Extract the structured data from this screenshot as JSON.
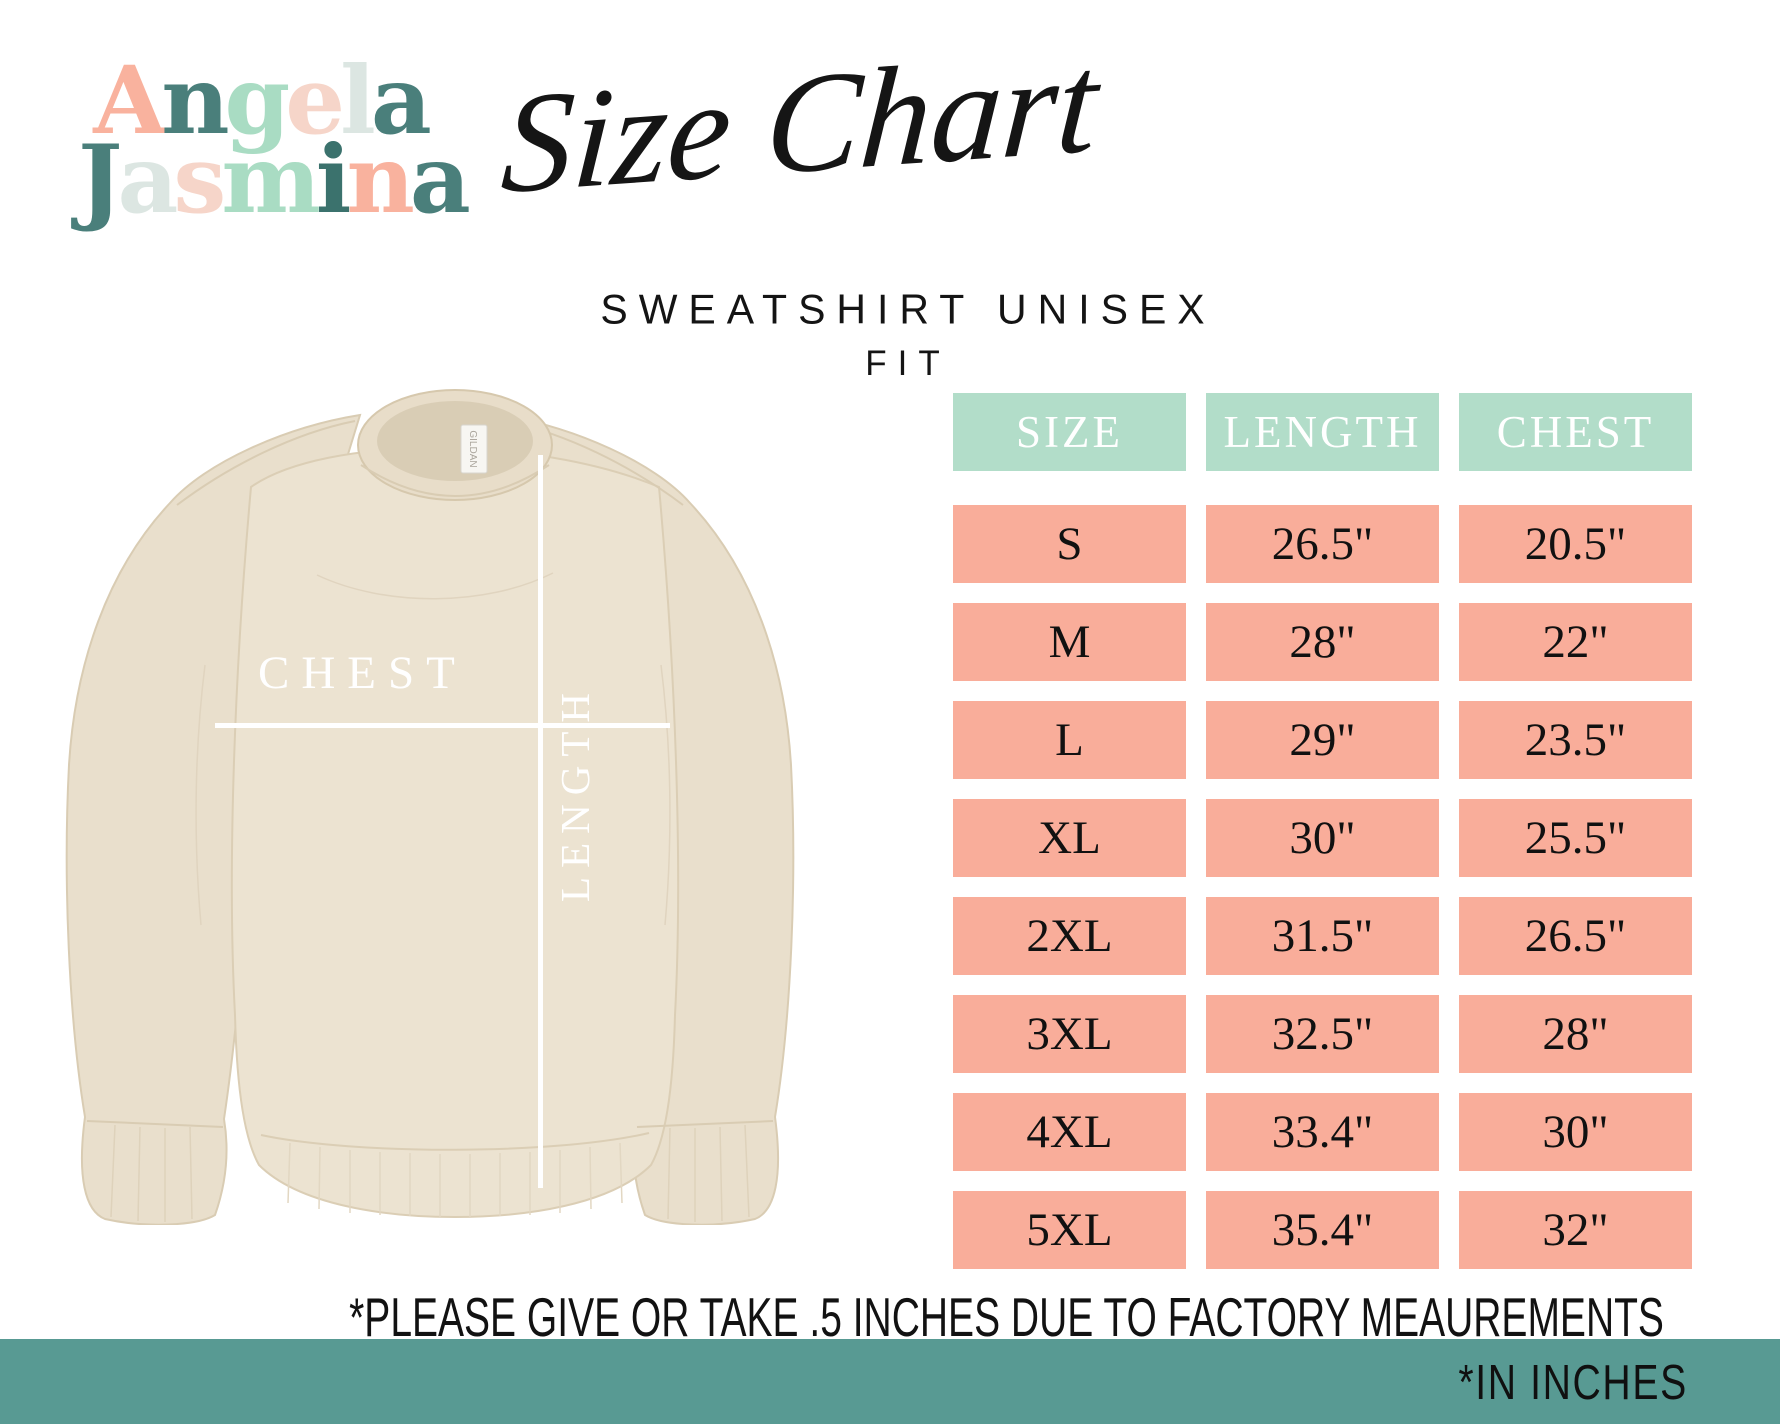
{
  "brand": {
    "line1": "Angela",
    "line2": "Jasmina",
    "line1_letters": [
      [
        "A",
        "#f9b29e"
      ],
      [
        "n",
        "#4a7f7b"
      ],
      [
        "g",
        "#a9dcc3"
      ],
      [
        "e",
        "#f6d5c9"
      ],
      [
        "l",
        "#dce6e2"
      ],
      [
        "a",
        "#4a7f7b"
      ]
    ],
    "line2_letters": [
      [
        "J",
        "#4a7f7b"
      ],
      [
        "a",
        "#dce6e2"
      ],
      [
        "s",
        "#f6d5c9"
      ],
      [
        "m",
        "#a9dcc3"
      ],
      [
        "i",
        "#3b726d"
      ],
      [
        "n",
        "#f9b29e"
      ],
      [
        "a",
        "#4a7f7b"
      ]
    ]
  },
  "header": {
    "title_script": "Size Chart",
    "subtitle": "SWEATSHIRT UNISEX",
    "subtitle_line2": "FIT"
  },
  "product": {
    "chest_label": "CHEST",
    "length_label": "LENGTH",
    "tag_label": "GILDAN"
  },
  "size_table": {
    "columns": [
      "SIZE",
      "LENGTH",
      "CHEST"
    ],
    "rows": [
      {
        "size": "S",
        "length": "26.5\"",
        "chest": "20.5\""
      },
      {
        "size": "M",
        "length": "28\"",
        "chest": "22\""
      },
      {
        "size": "L",
        "length": "29\"",
        "chest": "23.5\""
      },
      {
        "size": "XL",
        "length": "30\"",
        "chest": "25.5\""
      },
      {
        "size": "2XL",
        "length": "31.5\"",
        "chest": "26.5\""
      },
      {
        "size": "3XL",
        "length": "32.5\"",
        "chest": "28\""
      },
      {
        "size": "4XL",
        "length": "33.4\"",
        "chest": "30\""
      },
      {
        "size": "5XL",
        "length": "35.4\"",
        "chest": "32\""
      }
    ]
  },
  "footer": {
    "disclaimer": "*PLEASE GIVE OR TAKE .5 INCHES DUE TO FACTORY MEAUREMENTS",
    "units_note": "*IN INCHES"
  },
  "colors": {
    "header_cell": "#b2ddc9",
    "data_cell": "#f9ad9a",
    "footer_bar": "#589a93",
    "sweatshirt_body": "#ece3d1",
    "sweatshirt_shadow": "#d9cdb5"
  }
}
